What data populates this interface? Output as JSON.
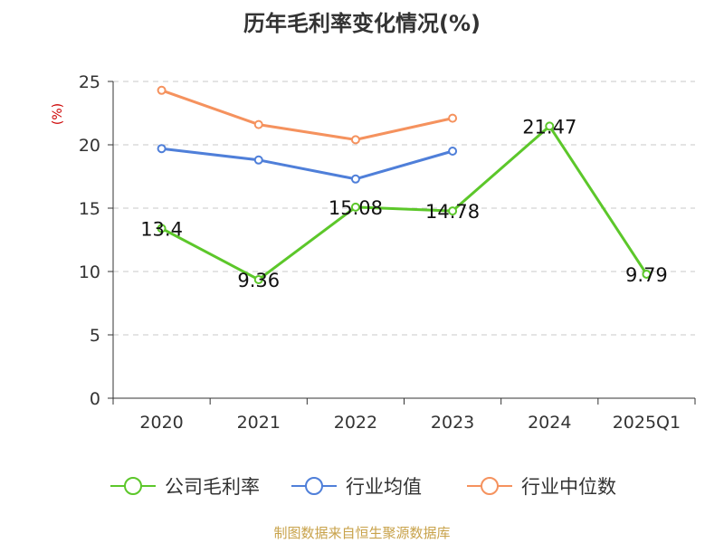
{
  "title": "历年毛利率变化情况(%)",
  "source": "制图数据来自恒生聚源数据库",
  "chart_data": {
    "type": "line",
    "title": "历年毛利率变化情况(%)",
    "ylabel": "(%)",
    "categories": [
      "2020",
      "2021",
      "2022",
      "2023",
      "2024",
      "2025Q1"
    ],
    "ylim": [
      0,
      25
    ],
    "yticks": [
      0,
      5,
      10,
      15,
      20,
      25
    ],
    "grid": true,
    "legend_position": "bottom",
    "series": [
      {
        "name": "公司毛利率",
        "color": "#5cc72a",
        "values": [
          13.4,
          9.36,
          15.08,
          14.78,
          21.47,
          9.79
        ],
        "data_labels": [
          "13.4",
          "9.36",
          "15.08",
          "14.78",
          "21.47",
          "9.79"
        ]
      },
      {
        "name": "行业均值",
        "color": "#4f7fd9",
        "values": [
          19.7,
          18.8,
          17.3,
          19.5,
          null,
          null
        ]
      },
      {
        "name": "行业中位数",
        "color": "#f5925e",
        "values": [
          24.3,
          21.6,
          20.4,
          22.1,
          null,
          null
        ]
      }
    ]
  }
}
